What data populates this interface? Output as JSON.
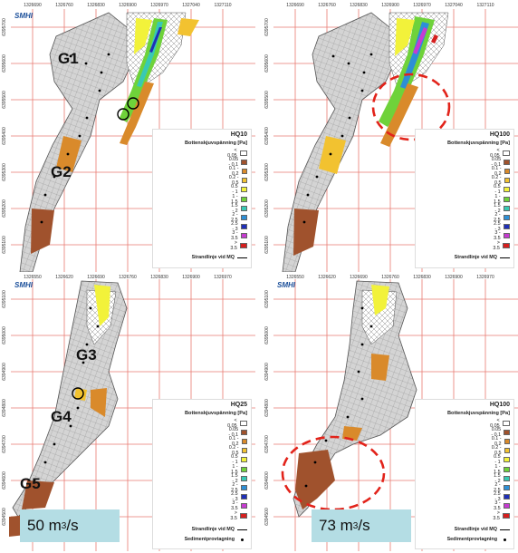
{
  "colors": {
    "bg": "#ffffff",
    "grid_red": "#e97a72",
    "mesh": "#9a9a9a",
    "fill_gray": "#c8c8c8",
    "highlight_circle": "#e2231a",
    "flow_box": "#b4dde4",
    "smhi_blue": "#1b4f9a"
  },
  "legend_classes": [
    {
      "label": "< 0.05",
      "color": "#ffffff"
    },
    {
      "label": "0.05 - 0.1",
      "color": "#a0522d"
    },
    {
      "label": "0.1 - 0.2",
      "color": "#d98a2b"
    },
    {
      "label": "0.2 - 0.5",
      "color": "#f2c230"
    },
    {
      "label": "0.5 - 1",
      "color": "#f2f23a"
    },
    {
      "label": "1 - 1.5",
      "color": "#6fd23a"
    },
    {
      "label": "1.5 - 2",
      "color": "#38c9b4"
    },
    {
      "label": "2 - 2.5",
      "color": "#2d8fd6"
    },
    {
      "label": "2.5 - 3",
      "color": "#1f2fb8"
    },
    {
      "label": "3 - 3.5",
      "color": "#c63bd1"
    },
    {
      "label": "> 3.5",
      "color": "#d61f1f"
    }
  ],
  "legend_common": {
    "subtitle": "Bottenskjuvspänning [Pa]",
    "shoreline": "Strandlinje vid MQ",
    "sediment": "Sedimentprovtagning"
  },
  "panels": [
    {
      "id": "top-left",
      "logo": "SMHI",
      "legend_title": "HQ10",
      "x_ticks": [
        "1326690",
        "1326760",
        "1326830",
        "1326900",
        "1326970",
        "1327040",
        "1327110"
      ],
      "y_ticks": [
        "6395700",
        "6395600",
        "6395500",
        "6395400",
        "6395300",
        "6395200",
        "6395100",
        "6395000"
      ],
      "labels": [
        "G1",
        "G2"
      ]
    },
    {
      "id": "top-right",
      "legend_title": "HQ100",
      "x_ticks": [
        "1326690",
        "1326760",
        "1326830",
        "1326900",
        "1326970",
        "1327040",
        "1327110"
      ],
      "y_ticks": [
        "6395700",
        "6395600",
        "6395500",
        "6395400",
        "6395300",
        "6395200",
        "6395100",
        "6395000"
      ]
    },
    {
      "id": "bottom-left",
      "logo": "SMHI",
      "legend_title": "HQ25",
      "x_ticks": [
        "1326550",
        "1326620",
        "1326690",
        "1326760",
        "1326830",
        "1326900",
        "1326970"
      ],
      "y_ticks": [
        "6395100",
        "6395000",
        "6394900",
        "6394800",
        "6394700",
        "6394600",
        "6394500",
        "6394400"
      ],
      "labels": [
        "G3",
        "G4",
        "G5"
      ],
      "flow": {
        "value": "50 m",
        "exp": "3",
        "unit": "/s"
      }
    },
    {
      "id": "bottom-right",
      "logo": "SMHI",
      "legend_title": "HQ100",
      "x_ticks": [
        "1326550",
        "1326620",
        "1326690",
        "1326760",
        "1326830",
        "1326900",
        "1326970"
      ],
      "y_ticks": [
        "6395100",
        "6395000",
        "6394900",
        "6394800",
        "6394700",
        "6394600",
        "6394500",
        "6394400"
      ],
      "flow": {
        "value": "73 m",
        "exp": "3",
        "unit": "/s"
      }
    }
  ]
}
